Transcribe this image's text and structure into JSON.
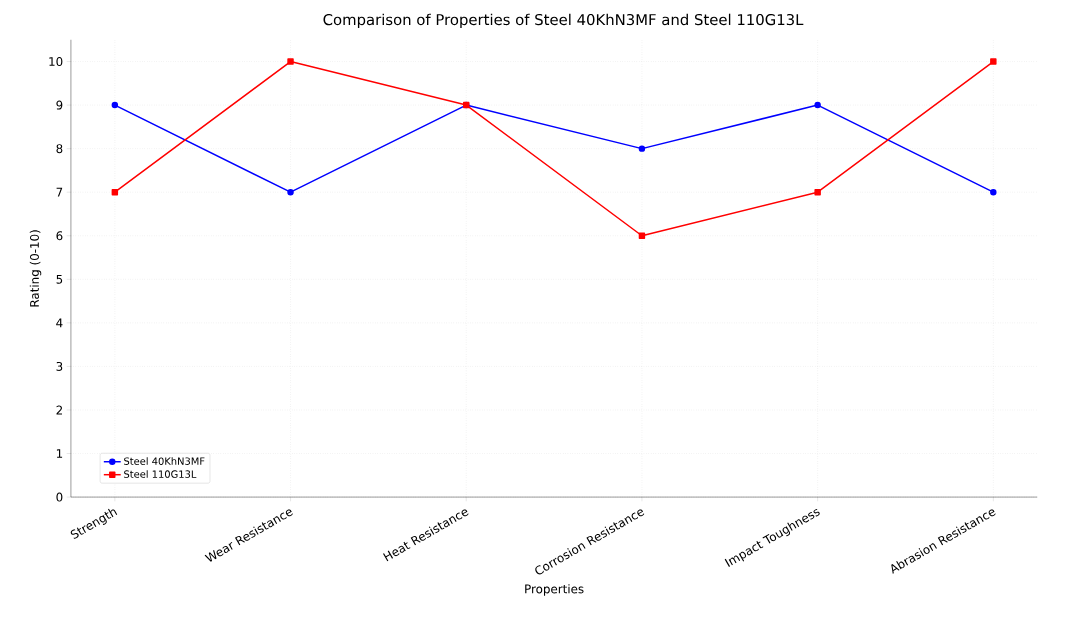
{
  "chart_data": {
    "type": "line",
    "title": "Comparison of Properties of Steel 40KhN3MF and Steel 110G13L",
    "xlabel": "Properties",
    "ylabel": "Rating (0-10)",
    "categories": [
      "Strength",
      "Wear Resistance",
      "Heat Resistance",
      "Corrosion Resistance",
      "Impact Toughness",
      "Abrasion Resistance"
    ],
    "series": [
      {
        "name": "Steel 40KhN3MF",
        "color": "#0000ff",
        "marker": "circle",
        "values": [
          9,
          7,
          9,
          8,
          9,
          7
        ]
      },
      {
        "name": "Steel 110G13L",
        "color": "#ff0000",
        "marker": "square",
        "values": [
          7,
          10,
          9,
          6,
          7,
          10
        ]
      }
    ],
    "ylim": [
      0,
      10.5
    ],
    "yticks": [
      0,
      1,
      2,
      3,
      4,
      5,
      6,
      7,
      8,
      9,
      10
    ],
    "grid": true,
    "legend": "bottom left",
    "line_style": "solid"
  }
}
